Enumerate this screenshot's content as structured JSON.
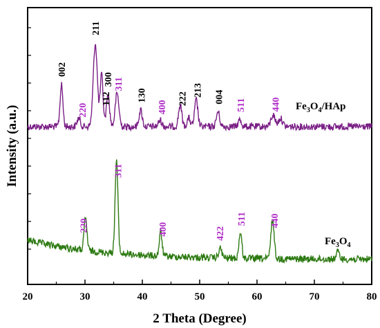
{
  "chart_data": {
    "type": "line",
    "title": "",
    "xlabel": "2 Theta (Degree)",
    "ylabel": "Intensity (a.u.)",
    "xlim": [
      20,
      80
    ],
    "xticks": [
      "20",
      "30",
      "40",
      "50",
      "60",
      "70",
      "80"
    ],
    "yticks_shown": false,
    "grid": false,
    "colors": {
      "hap_series": "#7a1f86",
      "fe3o4_series": "#2d7a12",
      "hap_index": "#000000",
      "fe3o4_index": "#b02cc8"
    },
    "series": [
      {
        "name": "Fe3O4/HAp",
        "label_parts": [
          "Fe",
          "3",
          "O",
          "4",
          "/HAp"
        ],
        "baseline_shape": "flat",
        "peaks": [
          {
            "x": 25.9,
            "height": 0.5,
            "width": 0.35
          },
          {
            "x": 28.9,
            "height": 0.1,
            "width": 0.4
          },
          {
            "x": 31.8,
            "height": 1.0,
            "width": 0.5
          },
          {
            "x": 32.9,
            "height": 0.62,
            "width": 0.35
          },
          {
            "x": 34.0,
            "height": 0.38,
            "width": 0.4
          },
          {
            "x": 35.6,
            "height": 0.4,
            "width": 0.45
          },
          {
            "x": 39.7,
            "height": 0.2,
            "width": 0.4
          },
          {
            "x": 43.1,
            "height": 0.08,
            "width": 0.4
          },
          {
            "x": 46.6,
            "height": 0.26,
            "width": 0.4
          },
          {
            "x": 48.1,
            "height": 0.1,
            "width": 0.4
          },
          {
            "x": 49.4,
            "height": 0.32,
            "width": 0.4
          },
          {
            "x": 53.2,
            "height": 0.18,
            "width": 0.4
          },
          {
            "x": 57.0,
            "height": 0.08,
            "width": 0.4
          },
          {
            "x": 62.8,
            "height": 0.14,
            "width": 0.5
          },
          {
            "x": 64.1,
            "height": 0.1,
            "width": 0.5
          }
        ],
        "annotations": [
          {
            "text": "002",
            "x": 25.9,
            "kind": "hap"
          },
          {
            "text": "220",
            "x": 29.5,
            "kind": "fe3o4"
          },
          {
            "text": "211",
            "x": 31.8,
            "kind": "hap"
          },
          {
            "text": "112",
            "x": 33.6,
            "kind": "hap"
          },
          {
            "text": "300",
            "x": 34.0,
            "kind": "hap"
          },
          {
            "text": "311",
            "x": 35.8,
            "kind": "fe3o4"
          },
          {
            "text": "130",
            "x": 39.8,
            "kind": "hap"
          },
          {
            "text": "400",
            "x": 43.4,
            "kind": "fe3o4"
          },
          {
            "text": "222",
            "x": 46.9,
            "kind": "hap"
          },
          {
            "text": "213",
            "x": 49.6,
            "kind": "hap"
          },
          {
            "text": "004",
            "x": 53.3,
            "kind": "hap"
          },
          {
            "text": "511",
            "x": 57.1,
            "kind": "fe3o4"
          },
          {
            "text": "440",
            "x": 63.2,
            "kind": "fe3o4"
          }
        ]
      },
      {
        "name": "Fe3O4",
        "label_parts": [
          "Fe",
          "3",
          "O",
          "4",
          ""
        ],
        "baseline_shape": "sloped",
        "peaks": [
          {
            "x": 30.1,
            "height": 0.35,
            "width": 0.35
          },
          {
            "x": 35.5,
            "height": 1.0,
            "width": 0.35
          },
          {
            "x": 43.2,
            "height": 0.25,
            "width": 0.35
          },
          {
            "x": 53.6,
            "height": 0.1,
            "width": 0.4
          },
          {
            "x": 57.1,
            "height": 0.28,
            "width": 0.35
          },
          {
            "x": 62.7,
            "height": 0.42,
            "width": 0.4
          },
          {
            "x": 74.1,
            "height": 0.08,
            "width": 0.4
          }
        ],
        "annotations": [
          {
            "text": "220",
            "x": 29.7,
            "kind": "fe3o4"
          },
          {
            "text": "311",
            "x": 35.7,
            "kind": "fe3o4"
          },
          {
            "text": "400",
            "x": 43.5,
            "kind": "fe3o4"
          },
          {
            "text": "422",
            "x": 53.5,
            "kind": "fe3o4"
          },
          {
            "text": "511",
            "x": 57.2,
            "kind": "fe3o4"
          },
          {
            "text": "440",
            "x": 63.0,
            "kind": "fe3o4"
          }
        ]
      }
    ]
  }
}
